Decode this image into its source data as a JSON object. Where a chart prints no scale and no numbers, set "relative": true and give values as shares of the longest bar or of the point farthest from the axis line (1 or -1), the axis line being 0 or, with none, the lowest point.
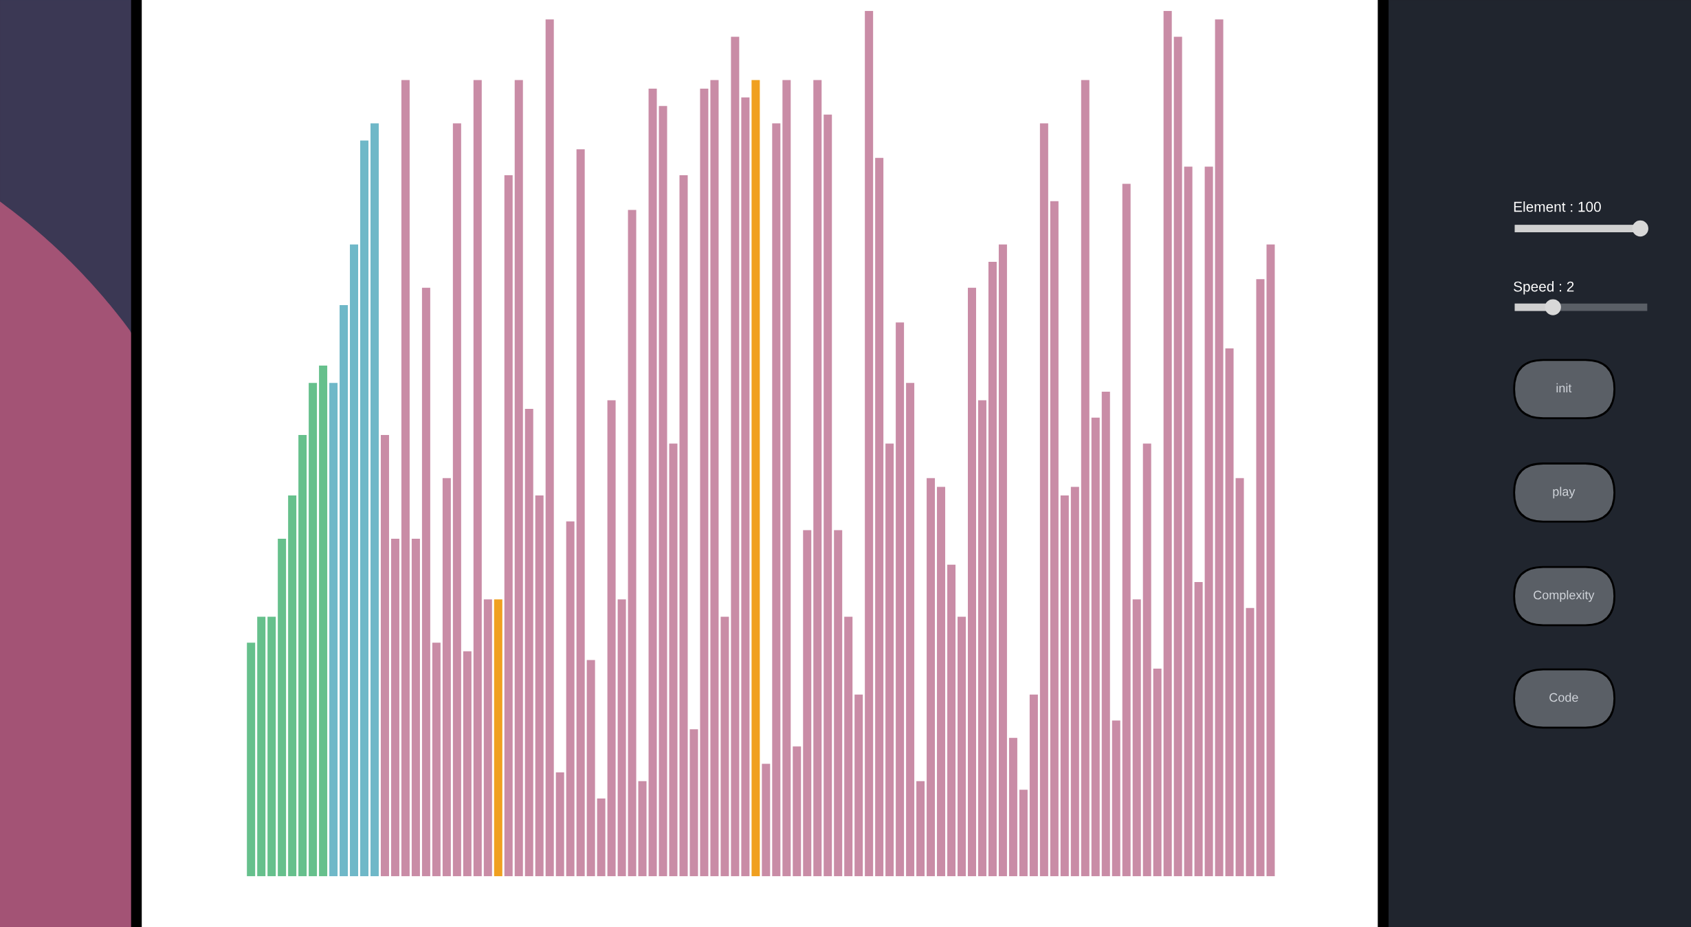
{
  "chart_data": {
    "type": "bar",
    "relative": true,
    "categories": [
      null,
      null,
      null,
      null,
      null,
      null,
      null,
      null,
      null,
      null,
      null,
      null,
      null,
      null,
      null,
      null,
      null,
      null,
      null,
      null,
      null,
      null,
      null,
      null,
      null,
      null,
      null,
      null,
      null,
      null,
      null,
      null,
      null,
      null,
      null,
      null,
      null,
      null,
      null,
      null,
      null,
      null,
      null,
      null,
      null,
      null,
      null,
      null,
      null,
      null,
      null,
      null,
      null,
      null,
      null,
      null,
      null,
      null,
      null,
      null,
      null,
      null,
      null,
      null,
      null,
      null,
      null,
      null,
      null,
      null,
      null,
      null,
      null,
      null,
      null,
      null,
      null,
      null,
      null,
      null,
      null,
      null,
      null,
      null,
      null,
      null,
      null,
      null,
      null,
      null,
      null,
      null,
      null,
      null,
      null,
      null,
      null,
      null,
      null,
      null
    ],
    "values": [
      0.27,
      0.3,
      0.3,
      0.39,
      0.44,
      0.51,
      0.57,
      0.59,
      0.57,
      0.66,
      0.73,
      0.85,
      0.87,
      0.51,
      0.39,
      0.92,
      0.39,
      0.68,
      0.27,
      0.46,
      0.87,
      0.26,
      0.92,
      0.32,
      0.32,
      0.81,
      0.92,
      0.54,
      0.44,
      0.99,
      0.12,
      0.41,
      0.84,
      0.25,
      0.09,
      0.55,
      0.32,
      0.77,
      0.11,
      0.91,
      0.89,
      0.5,
      0.81,
      0.17,
      0.91,
      0.92,
      0.3,
      0.97,
      0.9,
      0.92,
      0.13,
      0.87,
      0.92,
      0.15,
      0.4,
      0.92,
      0.88,
      0.4,
      0.3,
      0.21,
      1.0,
      0.83,
      0.5,
      0.64,
      0.57,
      0.11,
      0.46,
      0.45,
      0.36,
      0.3,
      0.68,
      0.55,
      0.71,
      0.73,
      0.16,
      0.1,
      0.21,
      0.87,
      0.78,
      0.44,
      0.45,
      0.92,
      0.53,
      0.56,
      0.18,
      0.8,
      0.32,
      0.5,
      0.24,
      1.0,
      0.97,
      0.82,
      0.34,
      0.82,
      0.99,
      0.61,
      0.46,
      0.31,
      0.69,
      0.73
    ],
    "colors": [
      "#66c08c",
      "#66c08c",
      "#66c08c",
      "#66c08c",
      "#66c08c",
      "#66c08c",
      "#66c08c",
      "#66c08c",
      "#6fb8c8",
      "#6fb8c8",
      "#6fb8c8",
      "#6fb8c8",
      "#6fb8c8",
      "#c98ca6",
      "#c98ca6",
      "#c98ca6",
      "#c98ca6",
      "#c98ca6",
      "#c98ca6",
      "#c98ca6",
      "#c98ca6",
      "#c98ca6",
      "#c98ca6",
      "#c98ca6",
      "#f0a020",
      "#c98ca6",
      "#c98ca6",
      "#c98ca6",
      "#c98ca6",
      "#c98ca6",
      "#c98ca6",
      "#c98ca6",
      "#c98ca6",
      "#c98ca6",
      "#c98ca6",
      "#c98ca6",
      "#c98ca6",
      "#c98ca6",
      "#c98ca6",
      "#c98ca6",
      "#c98ca6",
      "#c98ca6",
      "#c98ca6",
      "#c98ca6",
      "#c98ca6",
      "#c98ca6",
      "#c98ca6",
      "#c98ca6",
      "#c98ca6",
      "#f0a020",
      "#c98ca6",
      "#c98ca6",
      "#c98ca6",
      "#c98ca6",
      "#c98ca6",
      "#c98ca6",
      "#c98ca6",
      "#c98ca6",
      "#c98ca6",
      "#c98ca6",
      "#c98ca6",
      "#c98ca6",
      "#c98ca6",
      "#c98ca6",
      "#c98ca6",
      "#c98ca6",
      "#c98ca6",
      "#c98ca6",
      "#c98ca6",
      "#c98ca6",
      "#c98ca6",
      "#c98ca6",
      "#c98ca6",
      "#c98ca6",
      "#c98ca6",
      "#c98ca6",
      "#c98ca6",
      "#c98ca6",
      "#c98ca6",
      "#c98ca6",
      "#c98ca6",
      "#c98ca6",
      "#c98ca6",
      "#c98ca6",
      "#c98ca6",
      "#c98ca6",
      "#c98ca6",
      "#c98ca6",
      "#c98ca6",
      "#c98ca6",
      "#c98ca6",
      "#c98ca6",
      "#c98ca6",
      "#c98ca6",
      "#c98ca6",
      "#c98ca6",
      "#c98ca6",
      "#c98ca6",
      "#c98ca6",
      "#c98ca6"
    ],
    "annotations": [
      "Element : 100",
      "Speed : 2",
      "init",
      "play",
      "Complexity",
      "Code"
    ]
  }
}
